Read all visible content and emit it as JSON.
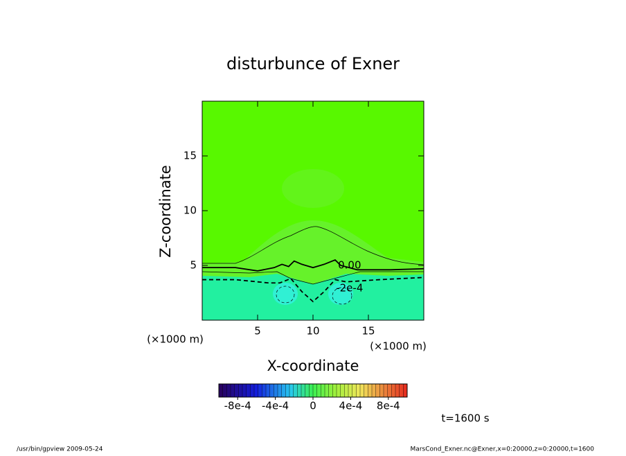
{
  "chart_data": {
    "type": "contour",
    "title": "disturbunce of Exner",
    "xlabel": "X-coordinate",
    "ylabel": "Z-coordinate",
    "x_unit": "(×1000 m)",
    "y_unit": "(×1000 m)",
    "xlim": [
      0,
      20
    ],
    "ylim": [
      0,
      20
    ],
    "xticks": [
      5,
      10,
      15
    ],
    "yticks": [
      5,
      10,
      15
    ],
    "contours": [
      {
        "level": {
          "value": 0,
          "label": "0.00"
        },
        "x": [
          0,
          3,
          5,
          6.5,
          7.2,
          7.8,
          8.3,
          9,
          10,
          11,
          12,
          12.5,
          14,
          17,
          20
        ],
        "y": [
          4.8,
          4.8,
          4.5,
          4.8,
          5.1,
          4.9,
          5.4,
          5.1,
          4.8,
          5.1,
          5.5,
          5.0,
          4.6,
          4.6,
          4.7
        ]
      },
      {
        "level": {
          "value": -0.0002,
          "label": "-2e-4"
        },
        "x": [
          0,
          3,
          6,
          7,
          8,
          9,
          10,
          11,
          12,
          13,
          16,
          20
        ],
        "y": [
          3.7,
          3.7,
          3.4,
          3.4,
          3.8,
          2.6,
          1.7,
          2.6,
          3.7,
          3.5,
          3.7,
          3.9
        ]
      }
    ],
    "colorbar": {
      "clim": [
        -0.001,
        0.001
      ],
      "ticks": [
        {
          "value": -0.0008,
          "label": "-8e-4"
        },
        {
          "value": -0.0004,
          "label": "-4e-4"
        },
        0,
        {
          "value": 0.0004,
          "label": "4e-4"
        },
        {
          "value": 0.0008,
          "label": "8e-4"
        }
      ]
    },
    "annotation": "t=1600 s",
    "footer_left": "/usr/bin/gpview  2009-05-24",
    "footer_right": "MarsCond_Exner.nc@Exner,x=0:20000,z=0:20000,t=1600"
  }
}
